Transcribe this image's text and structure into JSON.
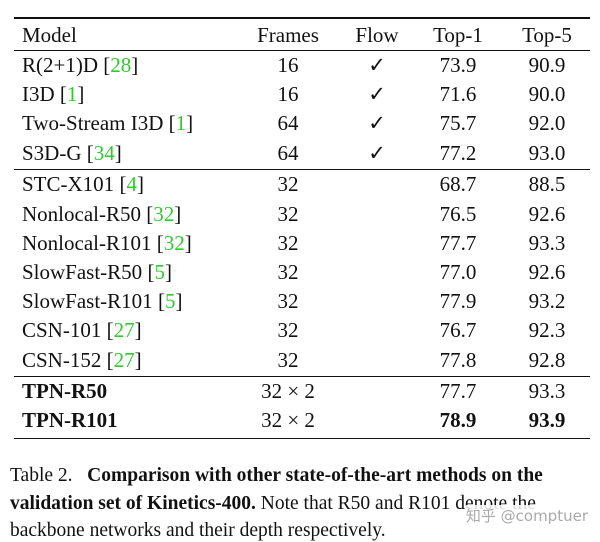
{
  "table": {
    "header": [
      "Model",
      "Frames",
      "Flow",
      "Top-1",
      "Top-5"
    ],
    "groups": [
      [
        {
          "model": "R(2+1)D",
          "cite": "28",
          "frames": "16",
          "flow": "✓",
          "top1": "73.9",
          "top5": "90.9"
        },
        {
          "model": "I3D",
          "cite": "1",
          "frames": "16",
          "flow": "✓",
          "top1": "71.6",
          "top5": "90.0"
        },
        {
          "model": "Two-Stream I3D",
          "cite": "1",
          "frames": "64",
          "flow": "✓",
          "top1": "75.7",
          "top5": "92.0"
        },
        {
          "model": "S3D-G",
          "cite": "34",
          "frames": "64",
          "flow": "✓",
          "top1": "77.2",
          "top5": "93.0"
        }
      ],
      [
        {
          "model": "STC-X101",
          "cite": "4",
          "frames": "32",
          "flow": null,
          "top1": "68.7",
          "top5": "88.5"
        },
        {
          "model": "Nonlocal-R50",
          "cite": "32",
          "frames": "32",
          "flow": null,
          "top1": "76.5",
          "top5": "92.6"
        },
        {
          "model": "Nonlocal-R101",
          "cite": "32",
          "frames": "32",
          "flow": null,
          "top1": "77.7",
          "top5": "93.3"
        },
        {
          "model": "SlowFast-R50",
          "cite": "5",
          "frames": "32",
          "flow": null,
          "top1": "77.0",
          "top5": "92.6"
        },
        {
          "model": "SlowFast-R101",
          "cite": "5",
          "frames": "32",
          "flow": null,
          "top1": "77.9",
          "top5": "93.2"
        },
        {
          "model": "CSN-101",
          "cite": "27",
          "frames": "32",
          "flow": null,
          "top1": "76.7",
          "top5": "92.3"
        },
        {
          "model": "CSN-152",
          "cite": "27",
          "frames": "32",
          "flow": null,
          "top1": "77.8",
          "top5": "92.8"
        }
      ],
      [
        {
          "model": "TPN-R50",
          "cite": null,
          "frames": "32 × 2",
          "flow": null,
          "top1": "77.7",
          "top5": "93.3"
        },
        {
          "model": "TPN-R101",
          "cite": null,
          "frames": "32 × 2",
          "flow": null,
          "top1": "78.9",
          "top5": "93.9"
        }
      ]
    ]
  },
  "caption": {
    "label": "Table 2.",
    "bold": "Comparison with other state-of-the-art methods on the validation set of Kinetics-400.",
    "text": "Note that R50 and R101 denote the backbone networks and their depth respectively."
  },
  "watermark": "知乎 @comptuer"
}
